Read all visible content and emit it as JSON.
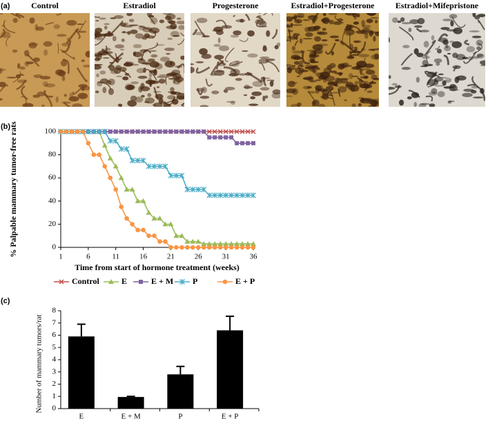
{
  "panel_a": {
    "label": "(a)",
    "images": [
      "Control",
      "Estradiol",
      "Progesterone",
      "Estradiol+Progesterone",
      "Estradiol+Mifepristone"
    ]
  },
  "chart_data": [
    {
      "type": "line",
      "panel_label": "(b)",
      "xlabel": "Time from start of hormone treatment (weeks)",
      "ylabel": "% Palpable mammary tumor-free rats",
      "x": [
        1,
        2,
        3,
        4,
        5,
        6,
        7,
        8,
        9,
        10,
        11,
        12,
        13,
        14,
        15,
        16,
        17,
        18,
        19,
        20,
        21,
        22,
        23,
        24,
        25,
        26,
        27,
        28,
        29,
        30,
        31,
        32,
        33,
        34,
        35,
        36
      ],
      "xlim": [
        1,
        36
      ],
      "xticks": [
        1,
        6,
        11,
        16,
        21,
        26,
        31,
        36
      ],
      "ylim": [
        0,
        100
      ],
      "yticks": [
        0,
        20,
        40,
        60,
        80,
        100
      ],
      "legend": "bottom",
      "series": [
        {
          "name": "Control",
          "color": "#c0504d",
          "marker": "x",
          "values": [
            100,
            100,
            100,
            100,
            100,
            100,
            100,
            100,
            100,
            100,
            100,
            100,
            100,
            100,
            100,
            100,
            100,
            100,
            100,
            100,
            100,
            100,
            100,
            100,
            100,
            100,
            100,
            100,
            100,
            100,
            100,
            100,
            100,
            100,
            100,
            100
          ]
        },
        {
          "name": "E",
          "color": "#9bbb59",
          "marker": "triangle",
          "values": [
            100,
            100,
            100,
            100,
            100,
            100,
            100,
            100,
            88,
            77,
            70,
            60,
            50,
            50,
            40,
            40,
            30,
            25,
            25,
            20,
            20,
            10,
            10,
            5,
            5,
            5,
            3,
            3,
            3,
            3,
            3,
            3,
            3,
            3,
            3,
            3
          ]
        },
        {
          "name": "E + M",
          "color": "#8064a2",
          "marker": "square",
          "values": [
            100,
            100,
            100,
            100,
            100,
            100,
            100,
            100,
            100,
            100,
            100,
            100,
            100,
            100,
            100,
            100,
            100,
            100,
            100,
            100,
            100,
            100,
            100,
            100,
            100,
            100,
            100,
            95,
            95,
            95,
            95,
            95,
            90,
            90,
            90,
            90
          ]
        },
        {
          "name": "P",
          "color": "#4bacc6",
          "marker": "asterisk",
          "values": [
            100,
            100,
            100,
            100,
            100,
            100,
            100,
            100,
            100,
            92,
            92,
            85,
            85,
            75,
            75,
            75,
            70,
            70,
            70,
            70,
            62,
            62,
            62,
            50,
            50,
            50,
            50,
            45,
            45,
            45,
            45,
            45,
            45,
            45,
            45,
            45
          ]
        },
        {
          "name": "E + P",
          "color": "#f79646",
          "marker": "circle",
          "values": [
            100,
            100,
            100,
            100,
            100,
            90,
            80,
            80,
            70,
            60,
            50,
            35,
            25,
            20,
            15,
            15,
            10,
            10,
            5,
            5,
            0,
            0,
            0,
            0,
            0,
            0,
            0,
            0,
            0,
            0,
            0,
            0,
            0,
            0,
            0,
            0
          ]
        }
      ]
    },
    {
      "type": "bar",
      "panel_label": "(c)",
      "ylabel": "Number of mammary tumors/rat",
      "categories": [
        "E",
        "E + M",
        "P",
        "E + P"
      ],
      "values": [
        5.9,
        0.95,
        2.8,
        6.4
      ],
      "errors": [
        1.0,
        0.05,
        0.65,
        1.15
      ],
      "color": "#000000",
      "ylim": [
        0,
        8
      ],
      "yticks": [
        0,
        1,
        2,
        3,
        4,
        5,
        6,
        7,
        8
      ]
    }
  ]
}
